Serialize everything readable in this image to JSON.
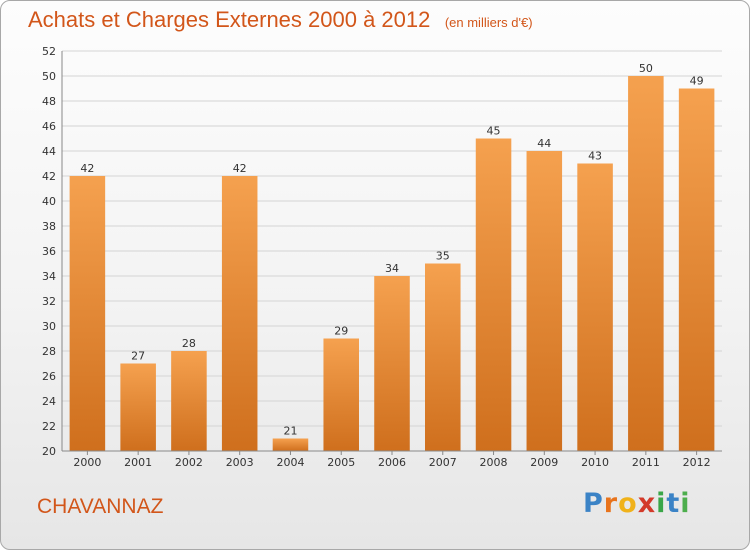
{
  "title": "Achats et Charges Externes 2000 à 2012",
  "subtitle": "(en milliers d'€)",
  "commune": "CHAVANNAZ",
  "logo": {
    "letters": [
      "P",
      "r",
      "o",
      "x",
      "i",
      "t",
      "i"
    ],
    "colors": [
      "#3b83c6",
      "#e8731c",
      "#f0b21a",
      "#d33a2a",
      "#3aa648",
      "#3b83c6",
      "#4cae4c"
    ]
  },
  "colors": {
    "accent": "#d2561a",
    "bar_top": "#f5a14f",
    "bar_bottom": "#cf6f1d"
  },
  "chart_data": {
    "type": "bar",
    "title": "Achats et Charges Externes 2000 à 2012",
    "subtitle": "(en milliers d'€)",
    "categories": [
      "2000",
      "2001",
      "2002",
      "2003",
      "2004",
      "2005",
      "2006",
      "2007",
      "2008",
      "2009",
      "2010",
      "2011",
      "2012"
    ],
    "values": [
      42,
      27,
      28,
      42,
      21,
      29,
      34,
      35,
      45,
      44,
      43,
      50,
      49
    ],
    "ylim": [
      20,
      52
    ],
    "yticks": [
      20,
      22,
      24,
      26,
      28,
      30,
      32,
      34,
      36,
      38,
      40,
      42,
      44,
      46,
      48,
      50,
      52
    ],
    "grid": true,
    "data_labels": true
  }
}
